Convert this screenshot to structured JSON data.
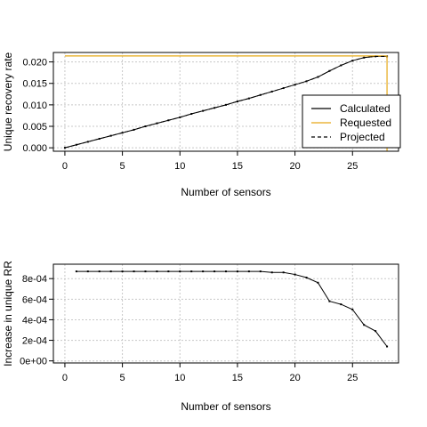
{
  "colors": {
    "calculated": "#000000",
    "requested": "#e6a817",
    "projected": "#000000",
    "grid": "#c8c8c8",
    "axis": "#000000"
  },
  "chart_data": [
    {
      "type": "line",
      "title": "",
      "xlabel": "Number of sensors",
      "ylabel": "Unique recovery rate",
      "xlim": [
        -1,
        29
      ],
      "ylim": [
        -0.0008,
        0.0222
      ],
      "xticks": [
        0,
        5,
        10,
        15,
        20,
        25
      ],
      "xtick_labels": [
        "0",
        "5",
        "10",
        "15",
        "20",
        "25"
      ],
      "yticks": [
        0,
        0.005,
        0.01,
        0.015,
        0.02
      ],
      "ytick_labels": [
        "0.000",
        "0.005",
        "0.010",
        "0.015",
        "0.020"
      ],
      "grid": true,
      "legend": {
        "position": "bottom-right",
        "entries": [
          {
            "label": "Calculated",
            "style": "solid",
            "color": "#000000"
          },
          {
            "label": "Requested",
            "style": "solid",
            "color": "#e6a817"
          },
          {
            "label": "Projected",
            "style": "dashed",
            "color": "#000000"
          }
        ]
      },
      "series": [
        {
          "name": "Calculated",
          "x": [
            0,
            1,
            2,
            3,
            4,
            5,
            6,
            7,
            8,
            9,
            10,
            11,
            12,
            13,
            14,
            15,
            16,
            17,
            18,
            19,
            20,
            21,
            22,
            23,
            24,
            25,
            26,
            27,
            28
          ],
          "y": [
            0.0,
            0.0007,
            0.0014,
            0.0021,
            0.0028,
            0.0035,
            0.0042,
            0.005,
            0.0057,
            0.0064,
            0.0071,
            0.0079,
            0.0086,
            0.0093,
            0.01,
            0.0108,
            0.0115,
            0.0123,
            0.0131,
            0.0139,
            0.0147,
            0.0155,
            0.0165,
            0.0179,
            0.0192,
            0.0203,
            0.021,
            0.0213,
            0.0213
          ]
        },
        {
          "name": "Requested",
          "y_level": 0.0214,
          "x_range": [
            0,
            28
          ],
          "vertical_drop_x": 28
        },
        {
          "name": "Projected",
          "x": [
            0,
            1,
            2,
            3,
            4,
            5,
            6,
            7,
            8,
            9,
            10,
            11,
            12,
            13,
            14,
            15,
            16,
            17,
            18,
            19,
            20,
            21,
            22,
            23,
            24,
            25,
            26,
            27,
            28
          ],
          "y": [
            0.0,
            0.0007,
            0.0014,
            0.0021,
            0.0028,
            0.0035,
            0.0042,
            0.005,
            0.0057,
            0.0064,
            0.0071,
            0.0079,
            0.0086,
            0.0093,
            0.01,
            0.0108,
            0.0115,
            0.0123,
            0.0131,
            0.0139,
            0.0147,
            0.0155,
            0.0165,
            0.0179,
            0.0192,
            0.0203,
            0.021,
            0.0213,
            0.0213
          ]
        }
      ]
    },
    {
      "type": "line",
      "title": "",
      "xlabel": "Number of sensors",
      "ylabel": "Increase in unique RR",
      "xlim": [
        -1,
        29
      ],
      "ylim": [
        -2e-05,
        0.00094
      ],
      "xticks": [
        0,
        5,
        10,
        15,
        20,
        25
      ],
      "xtick_labels": [
        "0",
        "5",
        "10",
        "15",
        "20",
        "25"
      ],
      "yticks": [
        0,
        0.0002,
        0.0004,
        0.0006,
        0.0008
      ],
      "ytick_labels": [
        "0e+00",
        "2e-04",
        "4e-04",
        "6e-04",
        "8e-04"
      ],
      "grid": true,
      "series": [
        {
          "name": "",
          "x": [
            1,
            2,
            3,
            4,
            5,
            6,
            7,
            8,
            9,
            10,
            11,
            12,
            13,
            14,
            15,
            16,
            17,
            18,
            19,
            20,
            21,
            22,
            23,
            24,
            25,
            26,
            27,
            28
          ],
          "y": [
            0.00087,
            0.00087,
            0.00087,
            0.00087,
            0.00087,
            0.00087,
            0.00087,
            0.00087,
            0.00087,
            0.00087,
            0.00087,
            0.00087,
            0.00087,
            0.00087,
            0.00087,
            0.00087,
            0.00087,
            0.00086,
            0.00086,
            0.00084,
            0.00081,
            0.00076,
            0.00058,
            0.00055,
            0.0005,
            0.00035,
            0.00029,
            0.00014
          ]
        }
      ]
    }
  ]
}
